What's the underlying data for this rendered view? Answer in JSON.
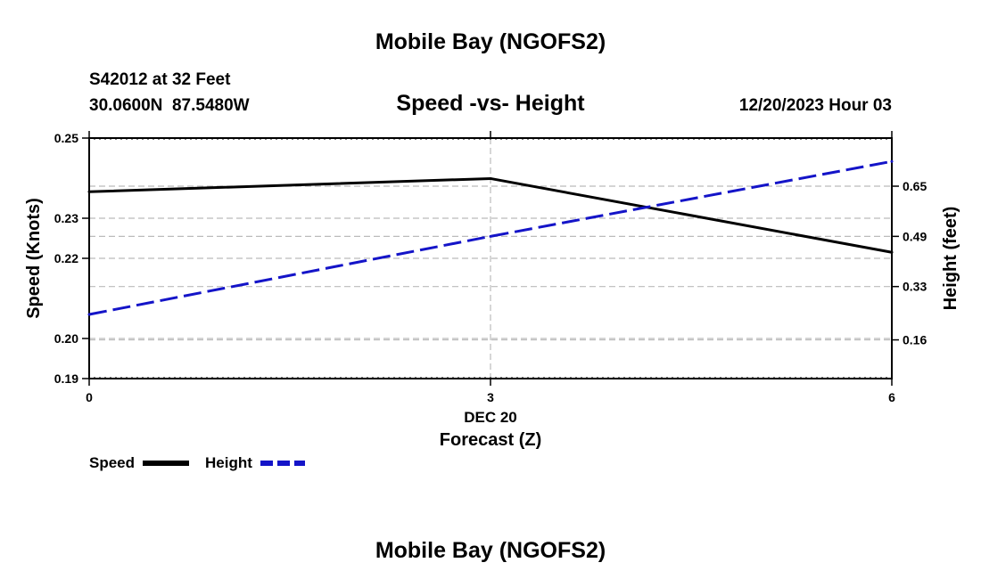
{
  "page": {
    "top_title": "Mobile Bay (NGOFS2)",
    "bottom_title": "Mobile Bay (NGOFS2)",
    "station_line": "S42012 at 32 Feet",
    "coords_line": "30.0600N  87.5480W",
    "datetime_line": "12/20/2023 Hour 03"
  },
  "chart_data": {
    "type": "line",
    "title": "Speed -vs- Height",
    "xlabel": "Forecast (Z)",
    "date_label": "DEC 20",
    "ylabel_left": "Speed (Knots)",
    "ylabel_right": "Height (feet)",
    "x_ticks": [
      "0",
      "3",
      "6"
    ],
    "x": [
      0,
      3,
      6
    ],
    "xlim": [
      0,
      6
    ],
    "ylim_left": [
      0.19,
      0.25
    ],
    "left_ticks": [
      "0.19",
      "0.20",
      "0.22",
      "0.23",
      "0.25"
    ],
    "ylim_right": [
      0.0366,
      0.8034
    ],
    "right_ticks": [
      "0.16",
      "0.33",
      "0.49",
      "0.65"
    ],
    "series": [
      {
        "name": "Speed",
        "axis": "left",
        "color": "#000000",
        "dash": "solid",
        "values": [
          0.2366,
          0.2399,
          0.2215
        ]
      },
      {
        "name": "Height",
        "axis": "right",
        "color": "#1414c8",
        "dash": "dashed",
        "values": [
          0.241,
          0.49,
          0.729
        ]
      }
    ]
  }
}
